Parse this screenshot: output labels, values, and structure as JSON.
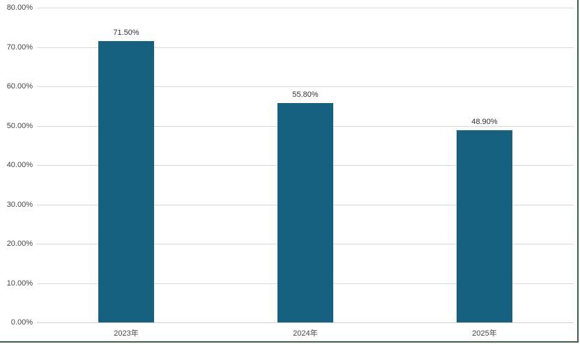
{
  "chart_data": {
    "type": "bar",
    "title": "",
    "xlabel": "",
    "ylabel": "",
    "categories": [
      "2023年",
      "2024年",
      "2025年"
    ],
    "values": [
      71.5,
      55.8,
      48.9
    ],
    "value_labels": [
      "71.50%",
      "55.80%",
      "48.90%"
    ],
    "y_ticks": [
      {
        "value": 80,
        "label": "80.00%"
      },
      {
        "value": 70,
        "label": "70.00%"
      },
      {
        "value": 60,
        "label": "60.00%"
      },
      {
        "value": 50,
        "label": "50.00%"
      },
      {
        "value": 40,
        "label": "40.00%"
      },
      {
        "value": 30,
        "label": "30.00%"
      },
      {
        "value": 20,
        "label": "20.00%"
      },
      {
        "value": 10,
        "label": "10.00%"
      },
      {
        "value": 0,
        "label": "0.00%"
      }
    ],
    "ylim": [
      0,
      80
    ],
    "grid": true,
    "legend": "none",
    "colors": {
      "bar": "#166180",
      "gridline": "#d9d9d9",
      "axis_line": "#cfcfcf",
      "tick_label": "#444444",
      "value_label": "#303030",
      "frame_border": "#3b5f48",
      "background": "#ffffff"
    }
  }
}
